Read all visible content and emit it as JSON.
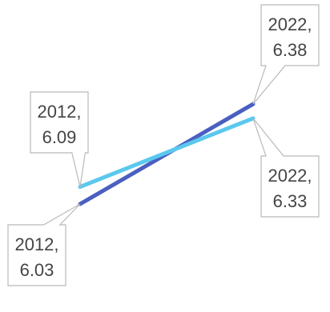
{
  "chart_data": {
    "type": "line",
    "x": [
      2012,
      2022
    ],
    "series": [
      {
        "values": [
          6.03,
          6.38
        ],
        "color": "#4A5FC1",
        "labels": [
          {
            "line1": "2012,",
            "line2": "6.03"
          },
          {
            "line1": "2022,",
            "line2": "6.38"
          }
        ]
      },
      {
        "values": [
          6.09,
          6.33
        ],
        "color": "#5BC8EE",
        "labels": [
          {
            "line1": "2012,",
            "line2": "6.09"
          },
          {
            "line1": "2022,",
            "line2": "6.33"
          }
        ]
      }
    ],
    "grid": false,
    "legend": "none"
  }
}
